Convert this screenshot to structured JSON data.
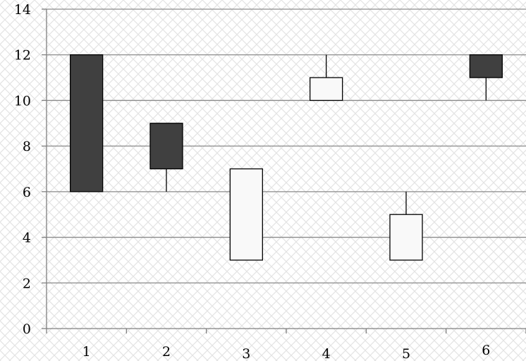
{
  "chart_data": {
    "type": "candlestick",
    "title": "",
    "xlabel": "",
    "ylabel": "",
    "categories": [
      "1",
      "2",
      "3",
      "4",
      "5",
      "6"
    ],
    "series": [
      {
        "category": "1",
        "open": 6,
        "close": 12,
        "high": 12,
        "low": 6
      },
      {
        "category": "2",
        "open": 7,
        "close": 9,
        "high": 9,
        "low": 6
      },
      {
        "category": "3",
        "open": 7,
        "close": 3,
        "high": 7,
        "low": 3
      },
      {
        "category": "4",
        "open": 11,
        "close": 10,
        "high": 12,
        "low": 10
      },
      {
        "category": "5",
        "open": 5,
        "close": 3,
        "high": 6,
        "low": 3
      },
      {
        "category": "6",
        "open": 11,
        "close": 12,
        "high": 12,
        "low": 10
      }
    ],
    "ylim": [
      0,
      14
    ],
    "yticks": [
      "0",
      "2",
      "4",
      "6",
      "8",
      "10",
      "12",
      "14"
    ],
    "grid": true,
    "legend": "none",
    "colors": {
      "rising": "#404040",
      "falling": "#f9f9f9",
      "grid": "#8a8a8a",
      "background_pattern": "#e2e2e2"
    }
  }
}
